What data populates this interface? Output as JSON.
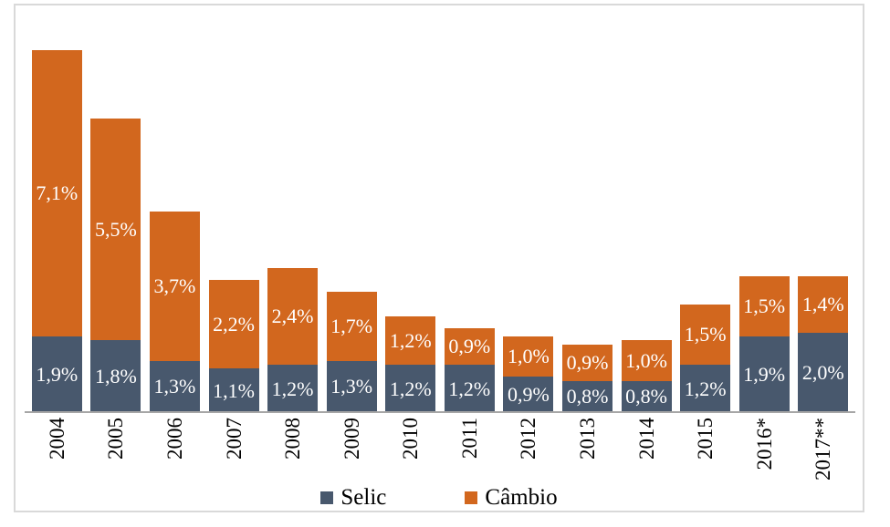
{
  "chart_data": {
    "type": "bar",
    "stacked": true,
    "orientation": "vertical",
    "categories": [
      "2004",
      "2005",
      "2006",
      "2007",
      "2008",
      "2009",
      "2010",
      "2011",
      "2012",
      "2013",
      "2014",
      "2015",
      "2016*",
      "2017**"
    ],
    "series": [
      {
        "name": "Selic",
        "color": "#48586d",
        "values": [
          1.9,
          1.8,
          1.3,
          1.1,
          1.2,
          1.3,
          1.2,
          1.2,
          0.9,
          0.8,
          0.8,
          1.2,
          1.9,
          2.0
        ],
        "labels": [
          "1,9%",
          "1,8%",
          "1,3%",
          "1,1%",
          "1,2%",
          "1,3%",
          "1,2%",
          "1,2%",
          "0,9%",
          "0,8%",
          "0,8%",
          "1,2%",
          "1,9%",
          "2,0%"
        ]
      },
      {
        "name": "Câmbio",
        "color": "#d2671e",
        "values": [
          7.1,
          5.5,
          3.7,
          2.2,
          2.4,
          1.7,
          1.2,
          0.9,
          1.0,
          0.9,
          1.0,
          1.5,
          1.5,
          1.4
        ],
        "labels": [
          "7,1%",
          "5,5%",
          "3,7%",
          "2,2%",
          "2,4%",
          "1,7%",
          "1,2%",
          "0,9%",
          "1,0%",
          "0,9%",
          "1,0%",
          "1,5%",
          "1,5%",
          "1,4%"
        ]
      }
    ],
    "title": "",
    "xlabel": "",
    "ylabel": "",
    "ylim": [
      0,
      10.1
    ],
    "grid": false,
    "legend_position": "bottom",
    "value_label_color": "#ffffff",
    "axis_line_color": "#a6a6a6",
    "frame_border_color": "#d9d9d9"
  }
}
